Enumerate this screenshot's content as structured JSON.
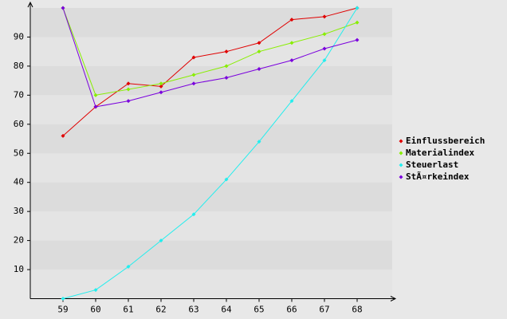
{
  "chart_data": {
    "type": "line",
    "x": [
      59,
      60,
      61,
      62,
      63,
      64,
      65,
      66,
      67,
      68
    ],
    "xlim": [
      58,
      69
    ],
    "xticks": [
      59,
      60,
      61,
      62,
      63,
      64,
      65,
      66,
      67,
      68
    ],
    "ylim": [
      0,
      100
    ],
    "yticks": [
      10,
      20,
      30,
      40,
      50,
      60,
      70,
      80,
      90
    ],
    "grid": true,
    "legend": "right",
    "series": [
      {
        "name": "Einflussbereich",
        "color": "#e00000",
        "values": [
          56,
          66,
          74,
          73,
          83,
          85,
          88,
          96,
          97,
          100
        ]
      },
      {
        "name": "Materialindex",
        "color": "#88ee00",
        "values": [
          100,
          70,
          72,
          74,
          77,
          80,
          85,
          88,
          91,
          95
        ]
      },
      {
        "name": "Steuerlast",
        "color": "#22eeee",
        "values": [
          0,
          3,
          11,
          20,
          29,
          41,
          54,
          68,
          82,
          100
        ]
      },
      {
        "name": "StÃ¤rkeindex",
        "color": "#7a00dd",
        "values": [
          100,
          66,
          68,
          71,
          74,
          76,
          79,
          82,
          86,
          89
        ]
      }
    ]
  }
}
